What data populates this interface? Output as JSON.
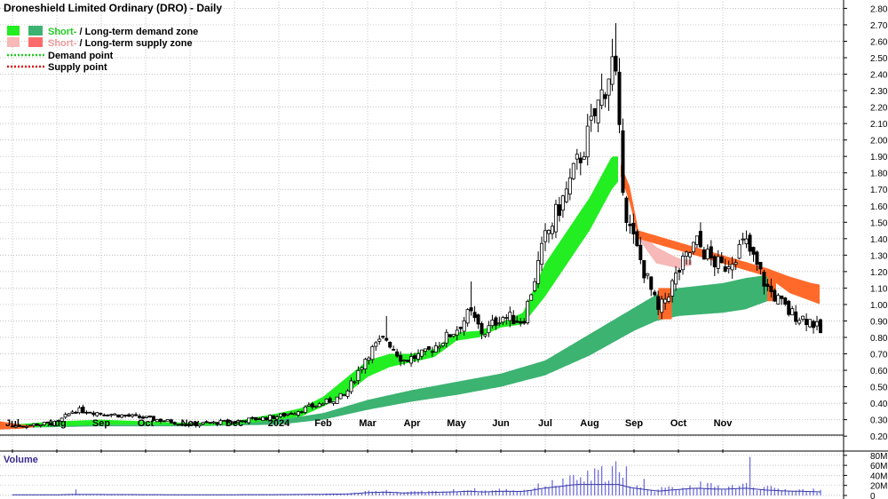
{
  "title": "Droneshield Limited Ordinary (DRO) - Daily",
  "legend": {
    "demand_zone": {
      "short": "Short-",
      "sep": " / ",
      "long": "Long-term demand zone"
    },
    "supply_zone": {
      "short": "Short-",
      "sep": " / ",
      "long": "Long-term supply zone"
    },
    "demand_point": "Demand point",
    "supply_point": "Supply point"
  },
  "volume_label": "Volume",
  "colors": {
    "short_demand": "#22ee22",
    "long_demand": "#3cb371",
    "short_supply": "#f7b8b8",
    "long_supply": "#ff6a2a",
    "demand_point": "#22cc22",
    "supply_point": "#dd1111",
    "volume_bar": "#7070e0",
    "volume_line": "#3838a8",
    "grid": "#b0b0b0"
  },
  "chart_data": {
    "type": "candlestick",
    "price_axis": {
      "ticks": [
        "0.20",
        "0.30",
        "0.40",
        "0.50",
        "0.60",
        "0.70",
        "0.80",
        "0.90",
        "1.00",
        "1.10",
        "1.20",
        "1.30",
        "1.40",
        "1.50",
        "1.60",
        "1.70",
        "1.80",
        "1.90",
        "2.00",
        "2.10",
        "2.20",
        "2.30",
        "2.40",
        "2.50",
        "2.60",
        "2.70",
        "2.80"
      ],
      "ylim": [
        0.12,
        2.84
      ]
    },
    "volume_axis": {
      "ticks": [
        "0",
        "20M",
        "40M",
        "60M",
        "80M"
      ],
      "ylim": [
        0,
        85
      ]
    },
    "x_labels": [
      "Jul",
      "Aug",
      "Sep",
      "Oct",
      "Nov",
      "Dec",
      "2024",
      "Feb",
      "Mar",
      "Apr",
      "May",
      "Jun",
      "Jul",
      "Aug",
      "Sep",
      "Oct",
      "Nov"
    ],
    "anchors": [
      {
        "m": 0,
        "c": 0.26
      },
      {
        "m": 1,
        "c": 0.28
      },
      {
        "m": 1.4,
        "c": 0.36
      },
      {
        "m": 2,
        "c": 0.34
      },
      {
        "m": 3,
        "c": 0.31
      },
      {
        "m": 4,
        "c": 0.27
      },
      {
        "m": 5,
        "c": 0.29
      },
      {
        "m": 6,
        "c": 0.32
      },
      {
        "m": 7,
        "c": 0.4
      },
      {
        "m": 7.5,
        "c": 0.45
      },
      {
        "m": 8,
        "c": 0.7
      },
      {
        "m": 8.4,
        "c": 0.8
      },
      {
        "m": 8.8,
        "c": 0.66
      },
      {
        "m": 9.3,
        "c": 0.7
      },
      {
        "m": 10,
        "c": 0.85
      },
      {
        "m": 10.3,
        "c": 0.95
      },
      {
        "m": 10.6,
        "c": 0.82
      },
      {
        "m": 11,
        "c": 0.93
      },
      {
        "m": 11.5,
        "c": 0.9
      },
      {
        "m": 12,
        "c": 1.4
      },
      {
        "m": 12.5,
        "c": 1.7
      },
      {
        "m": 13,
        "c": 2.05
      },
      {
        "m": 13.3,
        "c": 2.3
      },
      {
        "m": 13.55,
        "c": 2.5
      },
      {
        "m": 13.7,
        "c": 1.88
      },
      {
        "m": 13.85,
        "c": 1.5
      },
      {
        "m": 14,
        "c": 1.38
      },
      {
        "m": 14.3,
        "c": 1.15
      },
      {
        "m": 14.55,
        "c": 0.95
      },
      {
        "m": 15,
        "c": 1.2
      },
      {
        "m": 15.4,
        "c": 1.38
      },
      {
        "m": 15.7,
        "c": 1.28
      },
      {
        "m": 16,
        "c": 1.22
      },
      {
        "m": 16.5,
        "c": 1.38
      },
      {
        "m": 17,
        "c": 1.1
      },
      {
        "m": 17.5,
        "c": 0.95
      },
      {
        "m": 18,
        "c": 0.9
      },
      {
        "m": 18.2,
        "c": 0.83
      }
    ],
    "spikes": [
      {
        "m": 8.4,
        "h": 0.93
      },
      {
        "m": 10.3,
        "h": 1.14
      },
      {
        "m": 13.6,
        "h": 2.71
      },
      {
        "m": 15.5,
        "h": 1.5
      },
      {
        "m": 16.5,
        "h": 1.45
      },
      {
        "m": 14.25,
        "h": 1.25
      }
    ],
    "zones": {
      "short_demand": [
        {
          "m": 0,
          "lo": 0.25,
          "hi": 0.27
        },
        {
          "m": 1,
          "lo": 0.26,
          "hi": 0.29
        },
        {
          "m": 2,
          "lo": 0.27,
          "hi": 0.3
        },
        {
          "m": 3,
          "lo": 0.27,
          "hi": 0.29
        },
        {
          "m": 4,
          "lo": 0.265,
          "hi": 0.28
        },
        {
          "m": 5,
          "lo": 0.27,
          "hi": 0.29
        },
        {
          "m": 6,
          "lo": 0.3,
          "hi": 0.34
        },
        {
          "m": 6.5,
          "lo": 0.32,
          "hi": 0.37
        },
        {
          "m": 7,
          "lo": 0.38,
          "hi": 0.44
        },
        {
          "m": 7.5,
          "lo": 0.45,
          "hi": 0.55
        },
        {
          "m": 8,
          "lo": 0.56,
          "hi": 0.66
        },
        {
          "m": 8.5,
          "lo": 0.62,
          "hi": 0.7
        },
        {
          "m": 9,
          "lo": 0.65,
          "hi": 0.7
        },
        {
          "m": 9.5,
          "lo": 0.68,
          "hi": 0.73
        },
        {
          "m": 10,
          "lo": 0.78,
          "hi": 0.83
        },
        {
          "m": 10.5,
          "lo": 0.8,
          "hi": 0.84
        },
        {
          "m": 11,
          "lo": 0.86,
          "hi": 0.89
        },
        {
          "m": 11.5,
          "lo": 0.88,
          "hi": 0.95
        },
        {
          "m": 12,
          "lo": 1.05,
          "hi": 1.25
        },
        {
          "m": 12.5,
          "lo": 1.25,
          "hi": 1.45
        },
        {
          "m": 13,
          "lo": 1.45,
          "hi": 1.65
        },
        {
          "m": 13.5,
          "lo": 1.7,
          "hi": 1.9
        },
        {
          "m": 13.65,
          "lo": 1.75,
          "hi": 1.9
        }
      ],
      "long_demand": [
        {
          "m": 0,
          "lo": 0.25,
          "hi": 0.26
        },
        {
          "m": 2,
          "lo": 0.26,
          "hi": 0.27
        },
        {
          "m": 4,
          "lo": 0.26,
          "hi": 0.27
        },
        {
          "m": 6,
          "lo": 0.27,
          "hi": 0.3
        },
        {
          "m": 7,
          "lo": 0.3,
          "hi": 0.34
        },
        {
          "m": 8,
          "lo": 0.36,
          "hi": 0.42
        },
        {
          "m": 9,
          "lo": 0.41,
          "hi": 0.48
        },
        {
          "m": 10,
          "lo": 0.45,
          "hi": 0.53
        },
        {
          "m": 11,
          "lo": 0.5,
          "hi": 0.58
        },
        {
          "m": 12,
          "lo": 0.57,
          "hi": 0.66
        },
        {
          "m": 13,
          "lo": 0.69,
          "hi": 0.82
        },
        {
          "m": 14,
          "lo": 0.84,
          "hi": 0.98
        },
        {
          "m": 14.5,
          "lo": 0.9,
          "hi": 1.06
        },
        {
          "m": 15,
          "lo": 0.93,
          "hi": 1.1
        },
        {
          "m": 16,
          "lo": 0.95,
          "hi": 1.13
        },
        {
          "m": 16.5,
          "lo": 0.97,
          "hi": 1.16
        },
        {
          "m": 17,
          "lo": 1.02,
          "hi": 1.18
        }
      ],
      "short_supply": [
        {
          "m": 14.1,
          "lo": 1.4,
          "hi": 1.45
        },
        {
          "m": 14.5,
          "lo": 1.25,
          "hi": 1.35
        },
        {
          "m": 15,
          "lo": 1.22,
          "hi": 1.28
        },
        {
          "m": 15.3,
          "lo": 1.24,
          "hi": 1.27
        }
      ],
      "long_supply": [
        {
          "m": 13.7,
          "lo": 1.78,
          "hi": 1.85
        },
        {
          "m": 13.9,
          "lo": 1.62,
          "hi": 1.72
        },
        {
          "m": 14.1,
          "lo": 1.4,
          "hi": 1.45
        },
        {
          "m": 17,
          "lo": 1.17,
          "hi": 1.22
        },
        {
          "m": 17.5,
          "lo": 1.07,
          "hi": 1.17
        },
        {
          "m": 18,
          "lo": 1.02,
          "hi": 1.13
        },
        {
          "m": 18.2,
          "lo": 1.0,
          "hi": 1.12
        }
      ],
      "orange_blocks": [
        {
          "m0": 14.55,
          "m1": 14.85,
          "lo": 0.91,
          "hi": 1.1
        },
        {
          "m0": 17.0,
          "m1": 17.2,
          "lo": 1.02,
          "hi": 1.18
        }
      ]
    },
    "volume_spikes": [
      {
        "m": 1.4,
        "v": 12
      },
      {
        "m": 8.4,
        "v": 11
      },
      {
        "m": 10.3,
        "v": 10
      },
      {
        "m": 13.6,
        "v": 68
      },
      {
        "m": 13.8,
        "v": 58
      },
      {
        "m": 14.2,
        "v": 33
      },
      {
        "m": 15.5,
        "v": 28
      },
      {
        "m": 16.6,
        "v": 77
      }
    ]
  }
}
